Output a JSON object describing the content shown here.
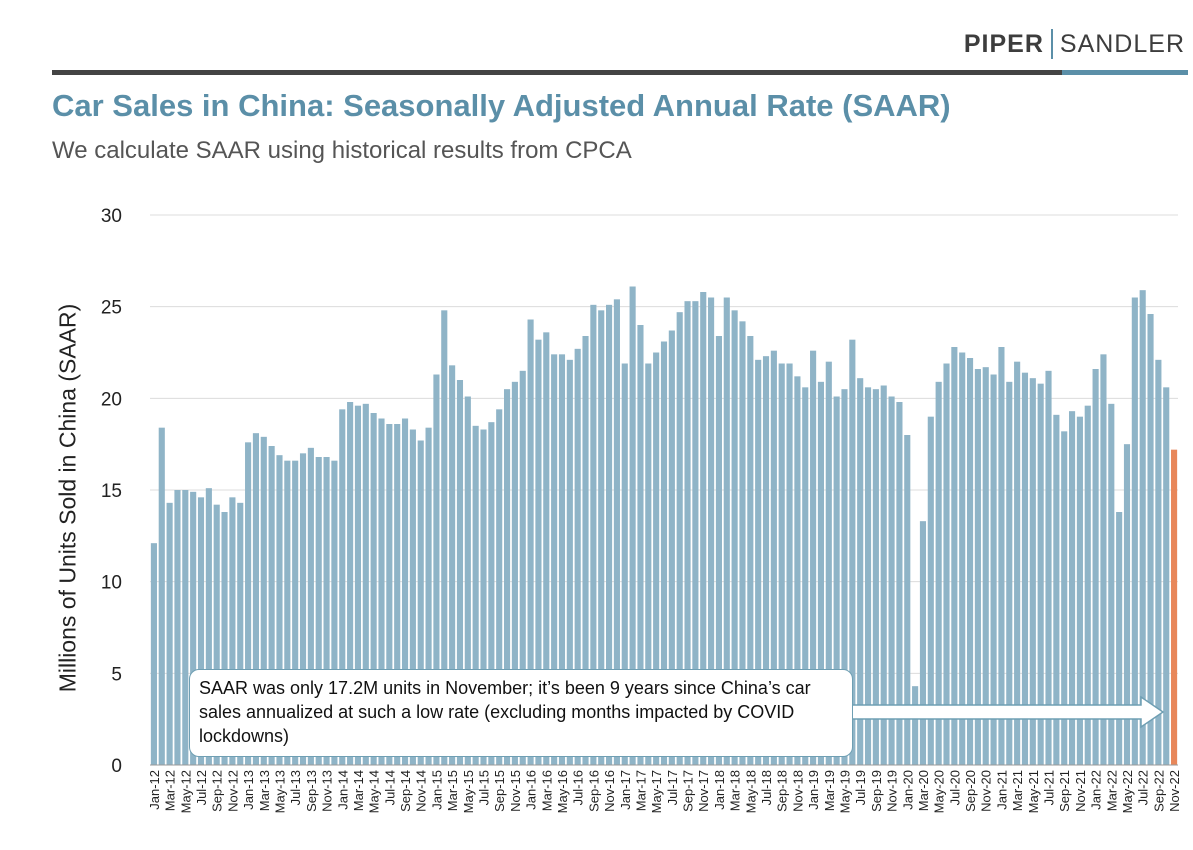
{
  "logo": {
    "part1": "PIPER",
    "part2": "SANDLER"
  },
  "header": {
    "title": "Car Sales in China: Seasonally Adjusted Annual Rate (SAAR)",
    "subtitle": "We calculate SAAR using historical results from CPCA"
  },
  "annotation": {
    "text": "SAAR was only 17.2M units in November; it’s been 9 years since China’s car sales annualized at such a low rate (excluding months impacted by COVID lockdowns)"
  },
  "colors": {
    "bar": "#8fb4c7",
    "highlight": "#e8875a",
    "title": "#5b8fa8"
  },
  "chart_data": {
    "type": "bar",
    "ylabel": "Millions of Units Sold in China (SAAR)",
    "ylim": [
      0,
      30
    ],
    "yticks": [
      0,
      5,
      10,
      15,
      20,
      25,
      30
    ],
    "grid": true,
    "categories": [
      "Jan-12",
      "Feb-12",
      "Mar-12",
      "Apr-12",
      "May-12",
      "Jun-12",
      "Jul-12",
      "Aug-12",
      "Sep-12",
      "Oct-12",
      "Nov-12",
      "Dec-12",
      "Jan-13",
      "Feb-13",
      "Mar-13",
      "Apr-13",
      "May-13",
      "Jun-13",
      "Jul-13",
      "Aug-13",
      "Sep-13",
      "Oct-13",
      "Nov-13",
      "Dec-13",
      "Jan-14",
      "Feb-14",
      "Mar-14",
      "Apr-14",
      "May-14",
      "Jun-14",
      "Jul-14",
      "Aug-14",
      "Sep-14",
      "Oct-14",
      "Nov-14",
      "Dec-14",
      "Jan-15",
      "Feb-15",
      "Mar-15",
      "Apr-15",
      "May-15",
      "Jun-15",
      "Jul-15",
      "Aug-15",
      "Sep-15",
      "Oct-15",
      "Nov-15",
      "Dec-15",
      "Jan-16",
      "Feb-16",
      "Mar-16",
      "Apr-16",
      "May-16",
      "Jun-16",
      "Jul-16",
      "Aug-16",
      "Sep-16",
      "Oct-16",
      "Nov-16",
      "Dec-16",
      "Jan-17",
      "Feb-17",
      "Mar-17",
      "Apr-17",
      "May-17",
      "Jun-17",
      "Jul-17",
      "Aug-17",
      "Sep-17",
      "Oct-17",
      "Nov-17",
      "Dec-17",
      "Jan-18",
      "Feb-18",
      "Mar-18",
      "Apr-18",
      "May-18",
      "Jun-18",
      "Jul-18",
      "Aug-18",
      "Sep-18",
      "Oct-18",
      "Nov-18",
      "Dec-18",
      "Jan-19",
      "Feb-19",
      "Mar-19",
      "Apr-19",
      "May-19",
      "Jun-19",
      "Jul-19",
      "Aug-19",
      "Sep-19",
      "Oct-19",
      "Nov-19",
      "Dec-19",
      "Jan-20",
      "Feb-20",
      "Mar-20",
      "Apr-20",
      "May-20",
      "Jun-20",
      "Jul-20",
      "Aug-20",
      "Sep-20",
      "Oct-20",
      "Nov-20",
      "Dec-20",
      "Jan-21",
      "Feb-21",
      "Mar-21",
      "Apr-21",
      "May-21",
      "Jun-21",
      "Jul-21",
      "Aug-21",
      "Sep-21",
      "Oct-21",
      "Nov-21",
      "Dec-21",
      "Jan-22",
      "Feb-22",
      "Mar-22",
      "Apr-22",
      "May-22",
      "Jun-22",
      "Jul-22",
      "Aug-22",
      "Sep-22",
      "Oct-22",
      "Nov-22"
    ],
    "series": [
      {
        "values": [
          12.1,
          18.4,
          14.3,
          15.0,
          15.0,
          14.9,
          14.6,
          15.1,
          14.2,
          13.8,
          14.6,
          14.3,
          17.6,
          18.1,
          17.9,
          17.4,
          16.9,
          16.6,
          16.6,
          17.0,
          17.3,
          16.8,
          16.8,
          16.6,
          19.4,
          19.8,
          19.6,
          19.7,
          19.2,
          18.9,
          18.6,
          18.6,
          18.9,
          18.3,
          17.7,
          18.4,
          21.3,
          24.8,
          21.8,
          21.0,
          20.1,
          18.5,
          18.3,
          18.7,
          19.4,
          20.5,
          20.9,
          21.5,
          24.3,
          23.2,
          23.6,
          22.4,
          22.4,
          22.1,
          22.7,
          23.4,
          25.1,
          24.8,
          25.1,
          25.4,
          21.9,
          26.1,
          24.0,
          21.9,
          22.5,
          23.1,
          23.7,
          24.7,
          25.3,
          25.3,
          25.8,
          25.5,
          23.4,
          25.5,
          24.8,
          24.2,
          23.4,
          22.1,
          22.3,
          22.6,
          21.9,
          21.9,
          21.2,
          20.6,
          22.6,
          20.9,
          22.0,
          20.1,
          20.5,
          23.2,
          21.1,
          20.6,
          20.5,
          20.7,
          20.1,
          19.8,
          18.0,
          4.3,
          13.3,
          19.0,
          20.9,
          21.9,
          22.8,
          22.5,
          22.2,
          21.6,
          21.7,
          21.3,
          22.8,
          20.9,
          22.0,
          21.4,
          21.1,
          20.8,
          21.5,
          19.1,
          18.2,
          19.3,
          19.0,
          19.6,
          21.6,
          22.4,
          19.7,
          13.8,
          17.5,
          25.5,
          25.9,
          24.6,
          22.1,
          20.6,
          17.2
        ]
      }
    ],
    "highlight_category": "Nov-22"
  }
}
